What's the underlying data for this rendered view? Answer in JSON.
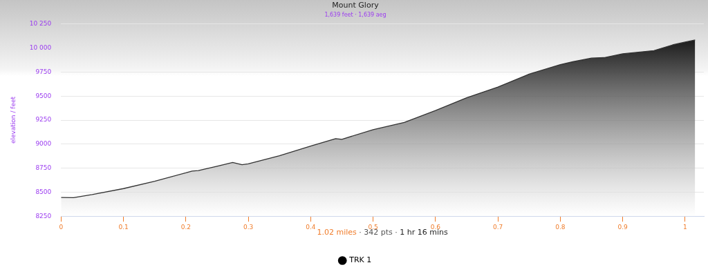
{
  "chart_data": {
    "type": "area",
    "title": "Mount Glory",
    "subtitle": "1,639 feet · 1,639 aeg",
    "ylabel": "elevation / feet",
    "annotations": [
      "1.02 miles · 342 pts · 1 hr 16 mins"
    ],
    "x": [
      0,
      0.02,
      0.05,
      0.1,
      0.15,
      0.2,
      0.21,
      0.22,
      0.25,
      0.275,
      0.29,
      0.3,
      0.35,
      0.4,
      0.44,
      0.45,
      0.5,
      0.55,
      0.6,
      0.65,
      0.7,
      0.75,
      0.8,
      0.82,
      0.85,
      0.87,
      0.9,
      0.95,
      0.98,
      1.0,
      1.016
    ],
    "series": [
      {
        "name": "TRK 1",
        "color": "#000000",
        "values": [
          8445,
          8443,
          8475,
          8537,
          8614,
          8701,
          8720,
          8725,
          8770,
          8809,
          8786,
          8795,
          8880,
          8980,
          9057,
          9050,
          9150,
          9226,
          9349,
          9483,
          9594,
          9728,
          9828,
          9857,
          9895,
          9900,
          9940,
          9973,
          10033,
          10062,
          10084
        ]
      }
    ],
    "xlim": [
      0,
      1.03
    ],
    "xticks": [
      0,
      0.1,
      0.2,
      0.3,
      0.4,
      0.5,
      0.6,
      0.7,
      0.8,
      0.9,
      1
    ],
    "ylim": [
      8250,
      10250
    ],
    "yticks": [
      8250,
      8500,
      8750,
      9000,
      9250,
      9500,
      9750,
      {
        "value": 10000,
        "label": "10 000"
      },
      {
        "value": 10250,
        "label": "10 250"
      }
    ],
    "grid": "y",
    "legend": "bottom",
    "marker": "none",
    "line_style": "solid"
  }
}
